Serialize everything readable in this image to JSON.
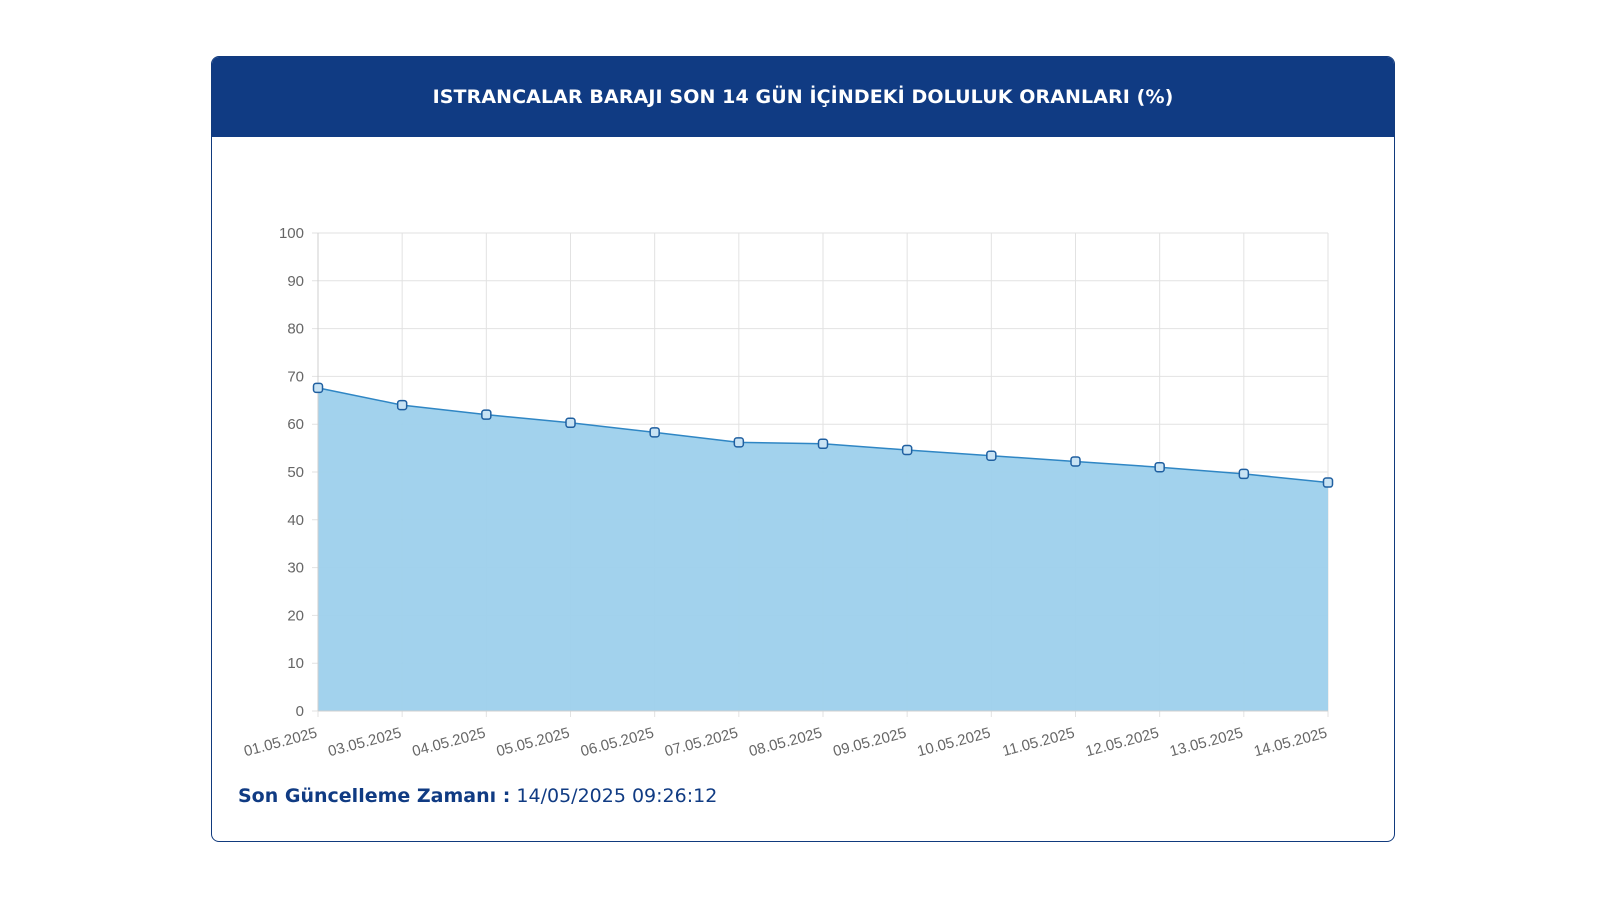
{
  "card": {
    "title": "ISTRANCALAR BARAJI SON 14 GÜN İÇİNDEKİ DOLULUK ORANLARI (%)"
  },
  "footer": {
    "label": "Son Güncelleme Zamanı :",
    "value": "14/05/2025 09:26:12"
  },
  "colors": {
    "header_bg": "#103b83",
    "line": "#2f86c4",
    "fill": "#9dd0ec",
    "grid": "#e2e2e2",
    "tick_text": "#666666"
  },
  "chart_data": {
    "type": "area",
    "title": "ISTRANCALAR BARAJI SON 14 GÜN İÇİNDEKİ DOLULUK ORANLARI (%)",
    "xlabel": "",
    "ylabel": "",
    "x": [
      "01.05.2025",
      "03.05.2025",
      "04.05.2025",
      "05.05.2025",
      "06.05.2025",
      "07.05.2025",
      "08.05.2025",
      "09.05.2025",
      "10.05.2025",
      "11.05.2025",
      "12.05.2025",
      "13.05.2025",
      "14.05.2025"
    ],
    "series": [
      {
        "values": [
          67.6,
          64.0,
          62.0,
          60.3,
          58.3,
          56.2,
          55.9,
          54.6,
          53.4,
          52.2,
          51.0,
          49.6,
          47.8
        ]
      }
    ],
    "ylim": [
      0,
      100
    ],
    "yticks": [
      "0",
      "10",
      "20",
      "30",
      "40",
      "50",
      "60",
      "70",
      "80",
      "90",
      "100"
    ],
    "grid": true,
    "legend": "none"
  }
}
